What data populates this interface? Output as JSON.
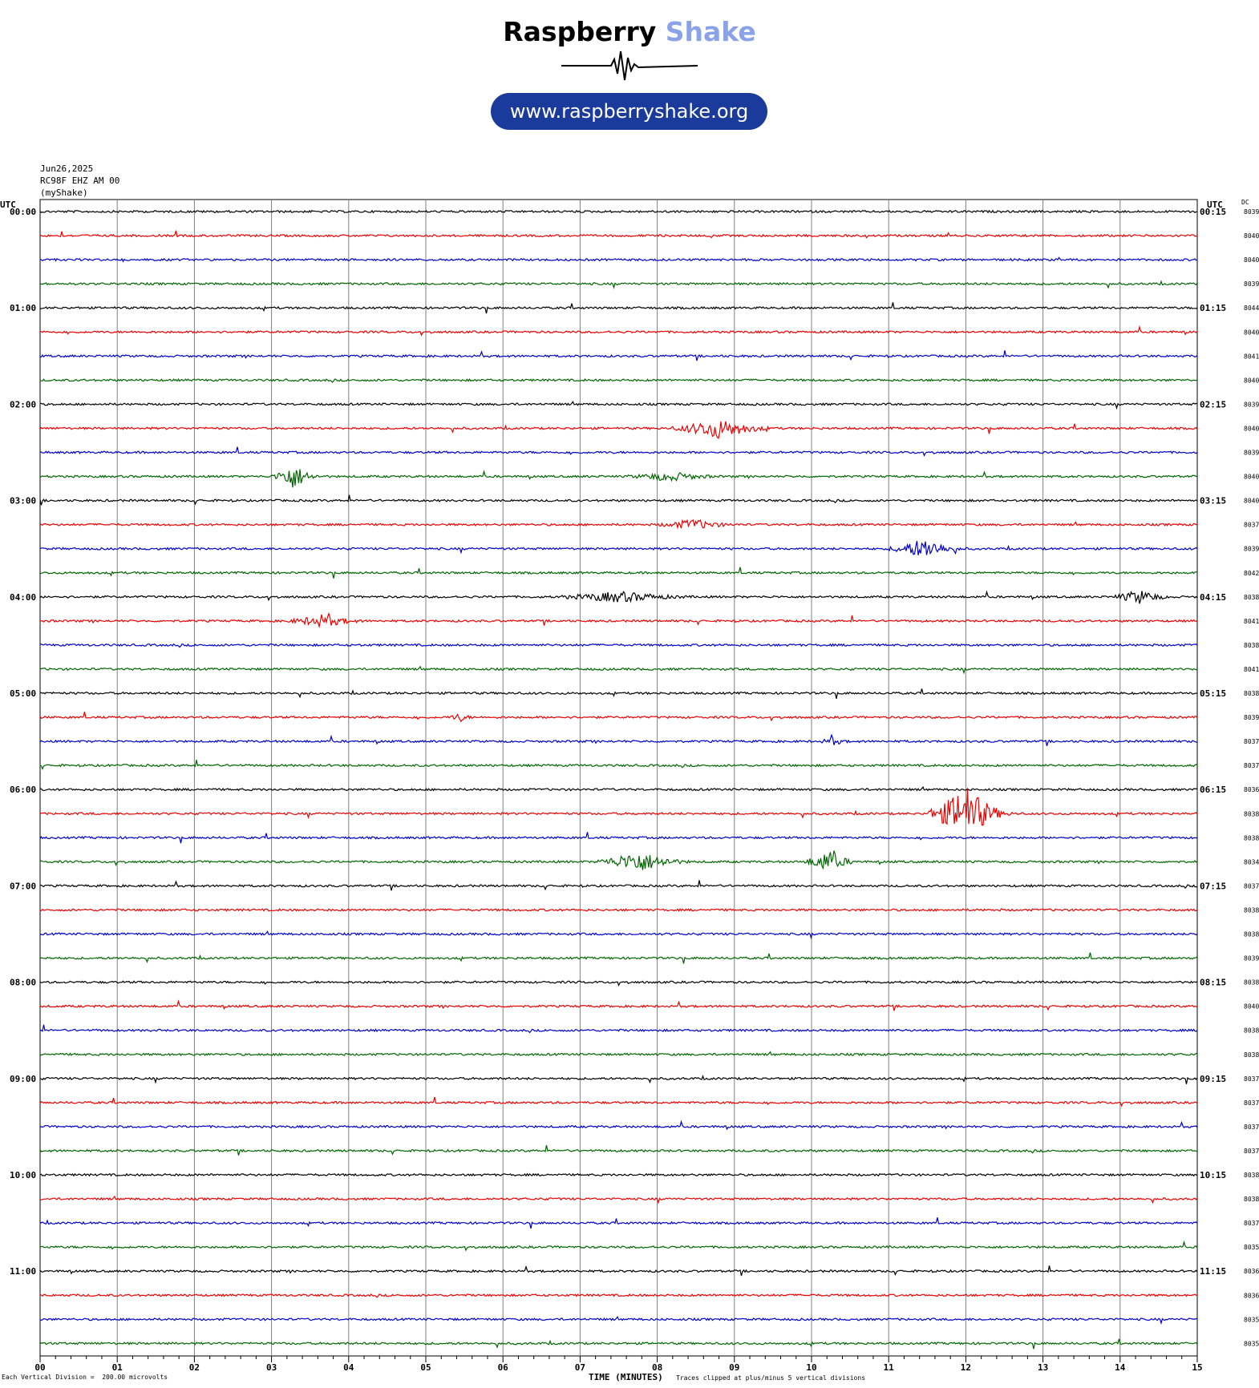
{
  "header": {
    "logo_word1": "Raspberry",
    "logo_word2": "Shake",
    "url": "www.raspberryshake.org",
    "date": "Jun26,2025",
    "station": "RC98F EHZ AM 00",
    "network": "(myShake)"
  },
  "axis": {
    "left_corner": "UTC",
    "right_corner": "UTC",
    "dc_corner": "DC",
    "xlabel": "TIME (MINUTES)",
    "footer_left": "Each Vertical Division =  200.00 microvolts",
    "footer_right": "Traces clipped at plus/minus 5 vertical divisions"
  },
  "colors": {
    "trace_cycle": [
      "#000000",
      "#ee0000",
      "#0000cc",
      "#006600"
    ],
    "grid": "#7f7f7f",
    "logo_accent": "#8aa3e8",
    "pill": "#1a3a9c"
  },
  "chart_data": {
    "type": "line",
    "description_type": "helicorder",
    "xlim": [
      0,
      15
    ],
    "x_ticks": [
      "00",
      "01",
      "02",
      "03",
      "04",
      "05",
      "06",
      "07",
      "08",
      "09",
      "10",
      "11",
      "12",
      "13",
      "14",
      "15"
    ],
    "rows": 48,
    "hour_labels_left": [
      "00:00",
      "01:00",
      "02:00",
      "03:00",
      "04:00",
      "05:00",
      "06:00",
      "07:00",
      "08:00",
      "09:00",
      "10:00",
      "11:00"
    ],
    "hour_labels_right": [
      "00:15",
      "01:15",
      "02:15",
      "03:15",
      "04:15",
      "05:15",
      "06:15",
      "07:15",
      "08:15",
      "09:15",
      "10:15",
      "11:15"
    ],
    "dc_values": [
      "8039",
      "8040",
      "8040",
      "8039",
      "8044",
      "8040",
      "8041",
      "8040",
      "8039",
      "8040",
      "8039",
      "8040",
      "8040",
      "8037",
      "8039",
      "8042",
      "8038",
      "8041",
      "8038",
      "8041",
      "8038",
      "8039",
      "8037",
      "8037",
      "8036",
      "8038",
      "8038",
      "8034",
      "8037",
      "8038",
      "8038",
      "8039",
      "8038",
      "8040",
      "8038",
      "8038",
      "8037",
      "8037",
      "8037",
      "8037",
      "8038",
      "8038",
      "8037",
      "8035",
      "8036",
      "8036",
      "8035",
      "8035"
    ],
    "events": [
      {
        "row": 9,
        "start": 8.2,
        "end": 9.9,
        "amp": 1.2
      },
      {
        "row": 11,
        "start": 3.0,
        "end": 3.8,
        "amp": 1.5
      },
      {
        "row": 11,
        "start": 7.6,
        "end": 9.2,
        "amp": 0.5
      },
      {
        "row": 13,
        "start": 8.0,
        "end": 9.3,
        "amp": 0.6
      },
      {
        "row": 14,
        "start": 11.0,
        "end": 12.3,
        "amp": 1.2
      },
      {
        "row": 16,
        "start": 6.7,
        "end": 9.0,
        "amp": 0.6
      },
      {
        "row": 16,
        "start": 13.9,
        "end": 14.9,
        "amp": 0.8
      },
      {
        "row": 17,
        "start": 3.2,
        "end": 4.5,
        "amp": 0.7
      },
      {
        "row": 21,
        "start": 5.3,
        "end": 5.7,
        "amp": 0.5
      },
      {
        "row": 22,
        "start": 10.1,
        "end": 10.6,
        "amp": 0.4
      },
      {
        "row": 25,
        "start": 11.5,
        "end": 12.9,
        "amp": 3.3
      },
      {
        "row": 27,
        "start": 7.2,
        "end": 8.8,
        "amp": 1.2
      },
      {
        "row": 27,
        "start": 9.9,
        "end": 10.8,
        "amp": 1.3
      }
    ]
  }
}
